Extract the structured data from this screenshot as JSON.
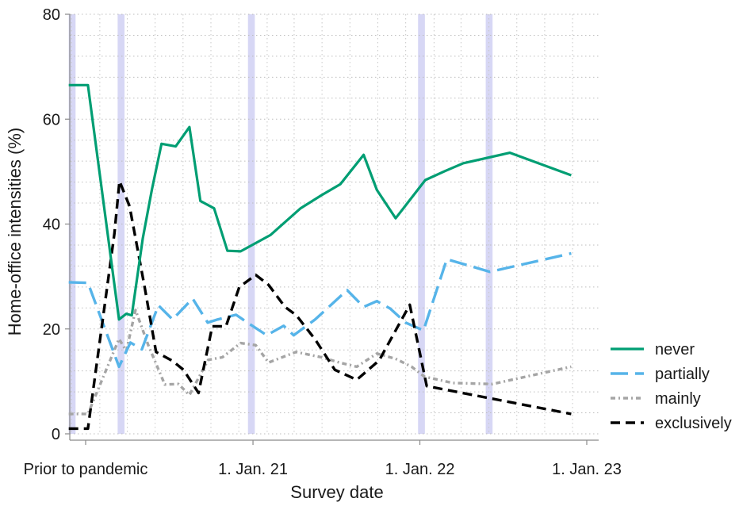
{
  "chart_data": {
    "type": "line",
    "xlabel": "Survey date",
    "ylabel": "Home-office intensities (%)",
    "ylim": [
      0,
      80
    ],
    "yticks": [
      0,
      20,
      40,
      60,
      80
    ],
    "xlim": [
      "2019-11-01",
      "2023-02-01"
    ],
    "xtick_labels": [
      {
        "x": "2020-01-01",
        "label": "Prior to pandemic"
      },
      {
        "x": "2021-01-01",
        "label": "1. Jan. 21"
      },
      {
        "x": "2022-01-01",
        "label": "1. Jan. 22"
      },
      {
        "x": "2023-01-01",
        "label": "1. Jan. 23"
      }
    ],
    "grid": true,
    "legend_position": "right-bottom",
    "highlight_bands": [
      [
        "2019-11-25",
        "2019-12-10"
      ],
      [
        "2020-03-11",
        "2020-03-26"
      ],
      [
        "2020-12-21",
        "2021-01-05"
      ],
      [
        "2021-12-28",
        "2022-01-12"
      ],
      [
        "2022-05-25",
        "2022-06-09"
      ]
    ],
    "series": [
      {
        "name": "never",
        "color": "#009e73",
        "style": "solid",
        "points": [
          [
            "2019-11-25",
            66.5
          ],
          [
            "2020-01-06",
            66.5
          ],
          [
            "2020-03-14",
            21.8
          ],
          [
            "2020-03-30",
            22.9
          ],
          [
            "2020-04-11",
            22.6
          ],
          [
            "2020-05-05",
            37.3
          ],
          [
            "2020-05-25",
            46.6
          ],
          [
            "2020-06-15",
            55.3
          ],
          [
            "2020-07-16",
            54.8
          ],
          [
            "2020-08-15",
            58.5
          ],
          [
            "2020-09-08",
            44.4
          ],
          [
            "2020-10-08",
            43.0
          ],
          [
            "2020-11-06",
            34.9
          ],
          [
            "2020-12-05",
            34.8
          ],
          [
            "2021-02-08",
            37.9
          ],
          [
            "2021-04-15",
            43.0
          ],
          [
            "2021-05-31",
            45.5
          ],
          [
            "2021-07-11",
            47.6
          ],
          [
            "2021-08-31",
            53.2
          ],
          [
            "2021-09-29",
            46.5
          ],
          [
            "2021-11-09",
            41.1
          ],
          [
            "2022-01-13",
            48.4
          ],
          [
            "2022-02-25",
            50.1
          ],
          [
            "2022-04-06",
            51.6
          ],
          [
            "2022-07-17",
            53.6
          ],
          [
            "2022-11-28",
            49.3
          ]
        ]
      },
      {
        "name": "partially",
        "color": "#56b4e9",
        "style": "dashed",
        "points": [
          [
            "2019-11-25",
            28.9
          ],
          [
            "2020-01-06",
            28.8
          ],
          [
            "2020-03-14",
            12.8
          ],
          [
            "2020-04-08",
            17.4
          ],
          [
            "2020-05-03",
            16.1
          ],
          [
            "2020-06-08",
            24.5
          ],
          [
            "2020-07-09",
            21.8
          ],
          [
            "2020-08-22",
            25.8
          ],
          [
            "2020-09-24",
            21.2
          ],
          [
            "2020-10-16",
            21.8
          ],
          [
            "2020-11-25",
            22.7
          ],
          [
            "2020-12-20",
            21.2
          ],
          [
            "2021-01-31",
            18.8
          ],
          [
            "2021-03-09",
            20.6
          ],
          [
            "2021-03-31",
            18.8
          ],
          [
            "2021-05-17",
            21.8
          ],
          [
            "2021-07-26",
            27.4
          ],
          [
            "2021-08-31",
            24.2
          ],
          [
            "2021-09-29",
            25.3
          ],
          [
            "2021-10-28",
            23.9
          ],
          [
            "2021-12-01",
            21.2
          ],
          [
            "2022-01-09",
            19.7
          ],
          [
            "2022-03-01",
            33.3
          ],
          [
            "2022-06-03",
            30.9
          ],
          [
            "2022-11-28",
            34.4
          ]
        ]
      },
      {
        "name": "mainly",
        "color": "#a5a5a5",
        "style": "dotted",
        "points": [
          [
            "2019-11-25",
            3.8
          ],
          [
            "2020-01-06",
            3.8
          ],
          [
            "2020-03-14",
            18.1
          ],
          [
            "2020-03-30",
            15.8
          ],
          [
            "2020-04-19",
            23.6
          ],
          [
            "2020-05-17",
            16.9
          ],
          [
            "2020-06-22",
            9.4
          ],
          [
            "2020-07-22",
            9.5
          ],
          [
            "2020-08-15",
            7.4
          ],
          [
            "2020-09-25",
            14.1
          ],
          [
            "2020-10-26",
            14.6
          ],
          [
            "2020-12-05",
            17.3
          ],
          [
            "2021-01-07",
            16.9
          ],
          [
            "2021-02-04",
            13.6
          ],
          [
            "2021-04-05",
            15.6
          ],
          [
            "2021-05-31",
            14.6
          ],
          [
            "2021-07-13",
            13.5
          ],
          [
            "2021-08-16",
            12.8
          ],
          [
            "2021-09-29",
            15.3
          ],
          [
            "2021-11-09",
            14.3
          ],
          [
            "2021-12-14",
            12.8
          ],
          [
            "2022-01-11",
            10.9
          ],
          [
            "2022-03-14",
            9.7
          ],
          [
            "2022-06-09",
            9.5
          ],
          [
            "2022-11-28",
            12.8
          ]
        ]
      },
      {
        "name": "exclusively",
        "color": "#000000",
        "style": "dashed",
        "points": [
          [
            "2019-11-25",
            1.0
          ],
          [
            "2020-01-06",
            1.0
          ],
          [
            "2020-03-04",
            38.2
          ],
          [
            "2020-03-15",
            48.2
          ],
          [
            "2020-04-06",
            43.4
          ],
          [
            "2020-05-09",
            28.0
          ],
          [
            "2020-06-03",
            15.6
          ],
          [
            "2020-07-09",
            13.9
          ],
          [
            "2020-08-02",
            12.2
          ],
          [
            "2020-09-04",
            7.8
          ],
          [
            "2020-10-04",
            20.5
          ],
          [
            "2020-11-03",
            20.5
          ],
          [
            "2020-12-02",
            28.0
          ],
          [
            "2021-01-07",
            30.3
          ],
          [
            "2021-02-04",
            28.4
          ],
          [
            "2021-03-12",
            24.2
          ],
          [
            "2021-04-06",
            22.6
          ],
          [
            "2021-05-17",
            18.0
          ],
          [
            "2021-06-29",
            12.2
          ],
          [
            "2021-08-16",
            10.3
          ],
          [
            "2021-10-04",
            14.0
          ],
          [
            "2021-12-10",
            24.6
          ],
          [
            "2022-01-16",
            9.1
          ],
          [
            "2022-11-28",
            3.8
          ]
        ]
      }
    ]
  }
}
